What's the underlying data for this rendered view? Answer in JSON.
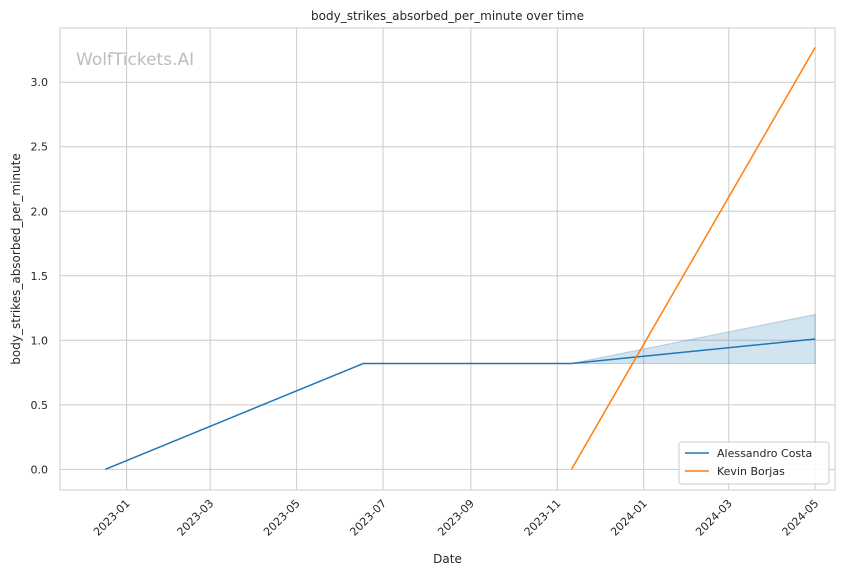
{
  "chart_data": {
    "type": "line",
    "title": "body_strikes_absorbed_per_minute over time",
    "xlabel": "Date",
    "ylabel": "body_strikes_absorbed_per_minute",
    "watermark": "WolfTickets.AI",
    "x_type": "date",
    "xlim": [
      "2022-11-15",
      "2024-05-15"
    ],
    "ylim": [
      -0.16,
      3.42
    ],
    "x_ticks": [
      "2023-01-01",
      "2023-03-01",
      "2023-05-01",
      "2023-07-01",
      "2023-09-01",
      "2023-11-01",
      "2024-01-01",
      "2024-03-01",
      "2024-05-01"
    ],
    "x_tick_labels": [
      "2023-01",
      "2023-03",
      "2023-05",
      "2023-07",
      "2023-09",
      "2023-11",
      "2024-01",
      "2024-03",
      "2024-05"
    ],
    "y_ticks": [
      0.0,
      0.5,
      1.0,
      1.5,
      2.0,
      2.5,
      3.0
    ],
    "y_tick_labels": [
      "0.0",
      "0.5",
      "1.0",
      "1.5",
      "2.0",
      "2.5",
      "3.0"
    ],
    "grid": true,
    "legend_position": "lower-right",
    "series": [
      {
        "name": "Alessandro Costa",
        "color": "#1f77b4",
        "x": [
          "2022-12-17",
          "2023-06-17",
          "2023-11-11",
          "2024-05-01"
        ],
        "y": [
          0.0,
          0.82,
          0.82,
          1.01
        ],
        "band": {
          "x": [
            "2023-11-11",
            "2024-05-01"
          ],
          "lower": [
            0.82,
            0.82
          ],
          "upper": [
            0.82,
            1.2
          ]
        }
      },
      {
        "name": "Kevin Borjas",
        "color": "#ff7f0e",
        "x": [
          "2023-11-11",
          "2024-05-01"
        ],
        "y": [
          0.0,
          3.27
        ]
      }
    ]
  }
}
